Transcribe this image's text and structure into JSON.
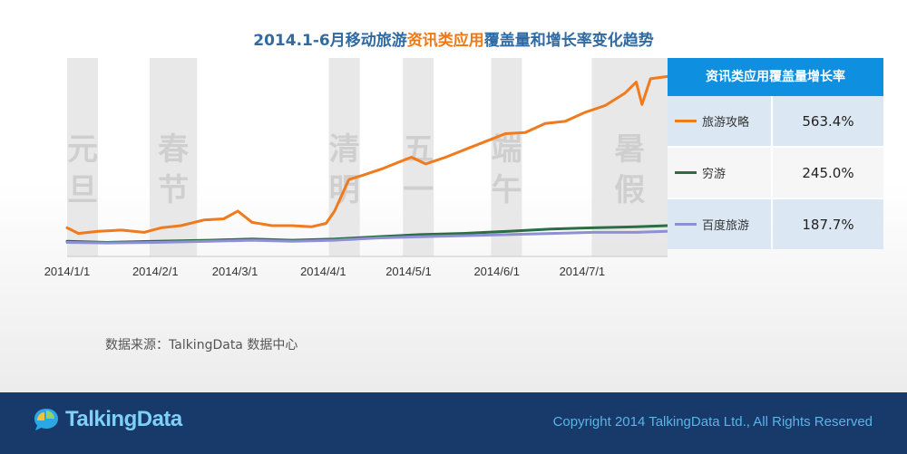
{
  "title": {
    "part1": "2014.1-6月移动旅游",
    "highlight": "资讯类应用",
    "part2": "覆盖量和增长率变化趋势"
  },
  "chart_data": {
    "type": "line",
    "x_ticks": [
      "2014/1/1",
      "2014/2/1",
      "2014/3/1",
      "2014/4/1",
      "2014/5/1",
      "2014/6/1",
      "2014/7/1"
    ],
    "holidays": [
      {
        "label_top": "元",
        "label_bottom": "旦",
        "start": "2014-01-01",
        "end": "2014-01-03"
      },
      {
        "label_top": "春",
        "label_bottom": "节",
        "start": "2014-01-30",
        "end": "2014-02-15"
      },
      {
        "label_top": "清",
        "label_bottom": "明",
        "start": "2014-04-03",
        "end": "2014-04-07"
      },
      {
        "label_top": "五",
        "label_bottom": "一",
        "start": "2014-04-29",
        "end": "2014-05-04"
      },
      {
        "label_top": "端",
        "label_bottom": "午",
        "start": "2014-05-30",
        "end": "2014-06-03"
      },
      {
        "label_top": "暑",
        "label_bottom": "假",
        "start": "2014-07-05",
        "end": "2014-07-31"
      }
    ],
    "series": [
      {
        "name": "旅游攻略",
        "color": "#f07a1c",
        "x": [
          "2014-01-01",
          "2014-01-05",
          "2014-01-12",
          "2014-01-20",
          "2014-01-28",
          "2014-02-03",
          "2014-02-10",
          "2014-02-18",
          "2014-02-25",
          "2014-03-02",
          "2014-03-07",
          "2014-03-14",
          "2014-03-21",
          "2014-03-28",
          "2014-04-02",
          "2014-04-05",
          "2014-04-10",
          "2014-04-15",
          "2014-04-22",
          "2014-04-28",
          "2014-05-02",
          "2014-05-07",
          "2014-05-14",
          "2014-05-21",
          "2014-05-28",
          "2014-06-04",
          "2014-06-11",
          "2014-06-18",
          "2014-06-25",
          "2014-07-02",
          "2014-07-09",
          "2014-07-16",
          "2014-07-20",
          "2014-07-22",
          "2014-07-25",
          "2014-07-31"
        ],
        "values": [
          0.15,
          0.1,
          0.12,
          0.13,
          0.11,
          0.15,
          0.17,
          0.22,
          0.23,
          0.3,
          0.2,
          0.17,
          0.17,
          0.16,
          0.19,
          0.3,
          0.58,
          0.62,
          0.68,
          0.74,
          0.78,
          0.72,
          0.78,
          0.85,
          0.92,
          0.99,
          1.0,
          1.08,
          1.1,
          1.18,
          1.24,
          1.35,
          1.45,
          1.25,
          1.48,
          1.5
        ]
      },
      {
        "name": "穷游",
        "color": "#2b6e46",
        "x": [
          "2014-01-01",
          "2014-01-15",
          "2014-02-01",
          "2014-02-20",
          "2014-03-07",
          "2014-03-21",
          "2014-04-05",
          "2014-04-20",
          "2014-05-05",
          "2014-05-20",
          "2014-06-05",
          "2014-06-20",
          "2014-07-05",
          "2014-07-20",
          "2014-07-31"
        ],
        "values": [
          0.03,
          0.02,
          0.03,
          0.04,
          0.05,
          0.04,
          0.05,
          0.07,
          0.09,
          0.1,
          0.12,
          0.14,
          0.15,
          0.16,
          0.17
        ]
      },
      {
        "name": "百度旅游",
        "color": "#8f8fd4",
        "x": [
          "2014-01-01",
          "2014-01-15",
          "2014-02-01",
          "2014-02-20",
          "2014-03-07",
          "2014-03-21",
          "2014-04-05",
          "2014-04-20",
          "2014-05-05",
          "2014-05-20",
          "2014-06-05",
          "2014-06-20",
          "2014-07-05",
          "2014-07-20",
          "2014-07-31"
        ],
        "values": [
          0.02,
          0.015,
          0.02,
          0.03,
          0.04,
          0.03,
          0.04,
          0.06,
          0.07,
          0.08,
          0.09,
          0.1,
          0.11,
          0.11,
          0.12
        ]
      }
    ],
    "xlim": [
      "2014-01-01",
      "2014-07-31"
    ],
    "ylim": [
      0,
      1.6
    ],
    "grid": false,
    "legend_position": "right table"
  },
  "panel": {
    "header": "资讯类应用覆盖量增长率",
    "rows": [
      {
        "name": "旅游攻略",
        "value": "563.4%",
        "color": "#f07a1c"
      },
      {
        "name": "穷游",
        "value": "245.0%",
        "color": "#2b6e46"
      },
      {
        "name": "百度旅游",
        "value": "187.7%",
        "color": "#8f8fd4"
      }
    ]
  },
  "source": "数据来源：TalkingData 数据中心",
  "footer": {
    "logo": "TalkingData",
    "copyright": "Copyright 2014 TalkingData Ltd., All Rights Reserved"
  }
}
